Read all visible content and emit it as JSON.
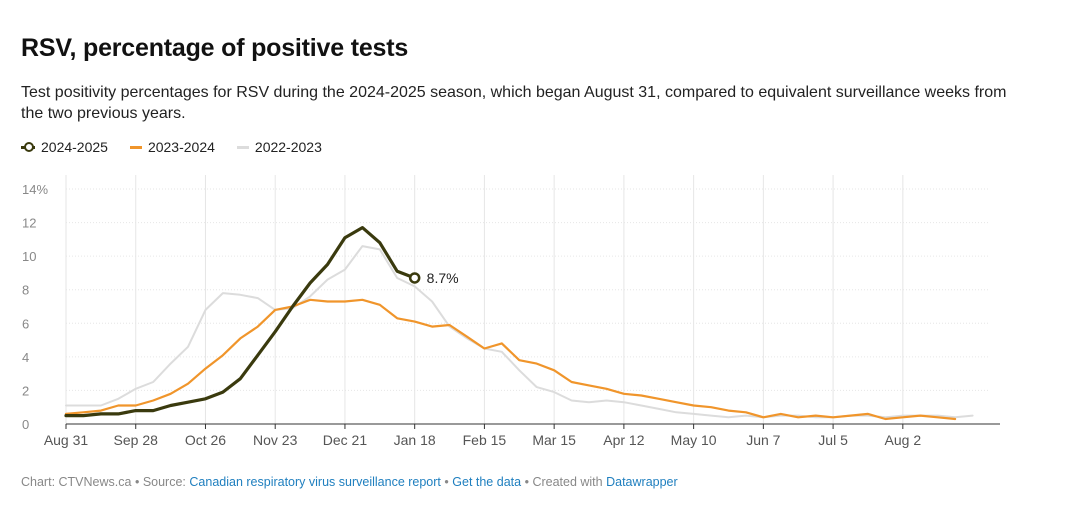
{
  "title": "RSV, percentage of positive tests",
  "subtitle": "Test positivity percentages for RSV during the 2024-2025 season, which began August 31, compared to equivalent surveillance weeks from the two previous years.",
  "footer": {
    "chart_credit": "Chart: CTVNews.ca",
    "source_label": "Source:",
    "source_link": "Canadian respiratory virus surveillance report",
    "data_link": "Get the data",
    "created_with_label": "Created with",
    "created_with_link": "Datawrapper",
    "separator": "•"
  },
  "chart_data": {
    "type": "line",
    "title": "RSV, percentage of positive tests",
    "xlabel": "",
    "ylabel": "",
    "ylim": [
      0,
      14
    ],
    "yticks": [
      0,
      2,
      4,
      6,
      8,
      10,
      12,
      14
    ],
    "ytick_labels": [
      "0",
      "2",
      "4",
      "6",
      "8",
      "10",
      "12",
      "14%"
    ],
    "xticks": [
      0,
      4,
      8,
      12,
      16,
      20,
      24,
      28,
      32,
      36,
      40,
      44,
      48
    ],
    "xtick_labels": [
      "Aug 31",
      "Sep 28",
      "Oct 26",
      "Nov 23",
      "Dec 21",
      "Jan 18",
      "Feb 15",
      "Mar 15",
      "Apr 12",
      "May 10",
      "Jun 7",
      "Jul 5",
      "Aug 2"
    ],
    "grid": true,
    "legend_position": "top-left",
    "annotation": {
      "series": "2024-2025",
      "text": "8.7%"
    },
    "series": [
      {
        "name": "2022-2023",
        "color": "#dcdcdc",
        "values": [
          1.1,
          1.1,
          1.1,
          1.5,
          2.1,
          2.5,
          3.6,
          4.6,
          6.8,
          7.8,
          7.7,
          7.5,
          6.8,
          6.9,
          7.6,
          8.6,
          9.2,
          10.6,
          10.4,
          8.7,
          8.2,
          7.3,
          5.8,
          5.1,
          4.5,
          4.3,
          3.2,
          2.2,
          1.9,
          1.4,
          1.3,
          1.4,
          1.3,
          1.1,
          0.9,
          0.7,
          0.6,
          0.5,
          0.4,
          0.5,
          0.4,
          0.5,
          0.5,
          0.4,
          0.4,
          0.5,
          0.5,
          0.4,
          0.5,
          0.5,
          0.5,
          0.4,
          0.5
        ]
      },
      {
        "name": "2023-2024",
        "color": "#f0952b",
        "values": [
          0.6,
          0.7,
          0.8,
          1.1,
          1.1,
          1.4,
          1.8,
          2.4,
          3.3,
          4.1,
          5.1,
          5.8,
          6.8,
          7.0,
          7.4,
          7.3,
          7.3,
          7.4,
          7.1,
          6.3,
          6.1,
          5.8,
          5.9,
          5.2,
          4.5,
          4.8,
          3.8,
          3.6,
          3.2,
          2.5,
          2.3,
          2.1,
          1.8,
          1.7,
          1.5,
          1.3,
          1.1,
          1.0,
          0.8,
          0.7,
          0.4,
          0.6,
          0.4,
          0.5,
          0.4,
          0.5,
          0.6,
          0.3,
          0.4,
          0.5,
          0.4,
          0.3
        ]
      },
      {
        "name": "2024-2025",
        "color": "#3a3a0e",
        "values": [
          0.5,
          0.5,
          0.6,
          0.6,
          0.8,
          0.8,
          1.1,
          1.3,
          1.5,
          1.9,
          2.7,
          4.1,
          5.5,
          7.0,
          8.4,
          9.5,
          11.1,
          11.7,
          10.8,
          9.1,
          8.7
        ]
      }
    ]
  }
}
